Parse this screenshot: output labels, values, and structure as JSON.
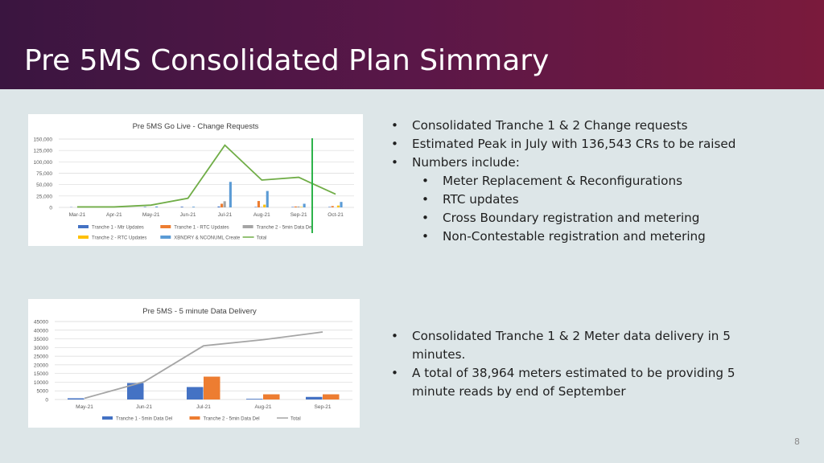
{
  "slide": {
    "title": "Pre 5MS Consolidated Plan Simmary",
    "page_number": "8",
    "bullets_top": [
      {
        "level": 1,
        "text": "Consolidated Tranche 1 & 2 Change requests"
      },
      {
        "level": 1,
        "text": "Estimated Peak in July with 136,543 CRs to be raised"
      },
      {
        "level": 1,
        "text": "Numbers include:"
      },
      {
        "level": 2,
        "text": "Meter Replacement & Reconfigurations"
      },
      {
        "level": 2,
        "text": "RTC updates"
      },
      {
        "level": 2,
        "text": "Cross Boundary registration and metering"
      },
      {
        "level": 2,
        "text": "Non-Contestable registration and metering"
      }
    ],
    "bullets_bottom": [
      {
        "level": 1,
        "text": "Consolidated Tranche 1 & 2 Meter data delivery in 5 minutes."
      },
      {
        "level": 1,
        "text": "A total of 38,964 meters estimated to be providing 5 minute reads by end of September"
      }
    ],
    "bullet_glyph": "•",
    "colors": {
      "header_start": "#3a1540",
      "header_end": "#7a1a3c",
      "background": "#dde6e8",
      "marker_line": "#2db34a"
    }
  },
  "chart_data": [
    {
      "type": "bar",
      "title": "Pre 5MS Go Live - Change Requests",
      "categories": [
        "Mar-21",
        "Apr-21",
        "May-21",
        "Jun-21",
        "Jul-21",
        "Aug-21",
        "Sep-21",
        "Oct-21"
      ],
      "ylim": [
        0,
        150000
      ],
      "yticks": [
        "0",
        "25,000",
        "50,000",
        "75,000",
        "100,000",
        "125,000",
        "150,000"
      ],
      "series": [
        {
          "name": "Tranche 1 - Mtr Updates",
          "type": "bar",
          "color": "#4472c4",
          "values": [
            500,
            500,
            1000,
            1500,
            2000,
            1000,
            1000,
            1000
          ]
        },
        {
          "name": "Tranche 1 - RTC Updates",
          "type": "bar",
          "color": "#ed7d31",
          "values": [
            0,
            0,
            0,
            0,
            8000,
            14000,
            2000,
            3000
          ]
        },
        {
          "name": "Tranche 2 - 5min Data Del",
          "type": "bar",
          "color": "#a5a5a5",
          "values": [
            0,
            0,
            0,
            0,
            13500,
            1000,
            2000,
            0
          ]
        },
        {
          "name": "Tranche 2 - RTC Updates",
          "type": "bar",
          "color": "#ffc000",
          "values": [
            0,
            0,
            0,
            0,
            0,
            6000,
            1000,
            4000
          ]
        },
        {
          "name": "XBNDRY & NCONUML Create",
          "type": "bar",
          "color": "#5b9bd5",
          "values": [
            0,
            0,
            2000,
            1500,
            56000,
            36000,
            8000,
            12000
          ]
        },
        {
          "name": "Total",
          "type": "line",
          "color": "#70ad47",
          "values": [
            1000,
            1000,
            5000,
            20000,
            136543,
            60000,
            66000,
            29000
          ]
        }
      ],
      "legend_position": "bottom",
      "gridlines": true
    },
    {
      "type": "bar",
      "title": "Pre 5MS - 5 minute Data Delivery",
      "categories": [
        "May-21",
        "Jun-21",
        "Jul-21",
        "Aug-21",
        "Sep-21"
      ],
      "ylim": [
        0,
        45000
      ],
      "yticks": [
        "0",
        "5000",
        "10000",
        "15000",
        "20000",
        "25000",
        "30000",
        "35000",
        "40000",
        "45000"
      ],
      "series": [
        {
          "name": "Tranche 1 - 5min Data Del",
          "type": "bar",
          "color": "#4472c4",
          "values": [
            700,
            9500,
            7200,
            400,
            1500
          ]
        },
        {
          "name": "Tranche 2 - 5min Data Del",
          "type": "bar",
          "color": "#ed7d31",
          "values": [
            0,
            0,
            13200,
            3000,
            3000
          ]
        },
        {
          "name": "Total",
          "type": "line",
          "color": "#a5a5a5",
          "values": [
            700,
            10200,
            31000,
            34500,
            38964
          ]
        }
      ],
      "legend_position": "bottom",
      "gridlines": true
    }
  ]
}
